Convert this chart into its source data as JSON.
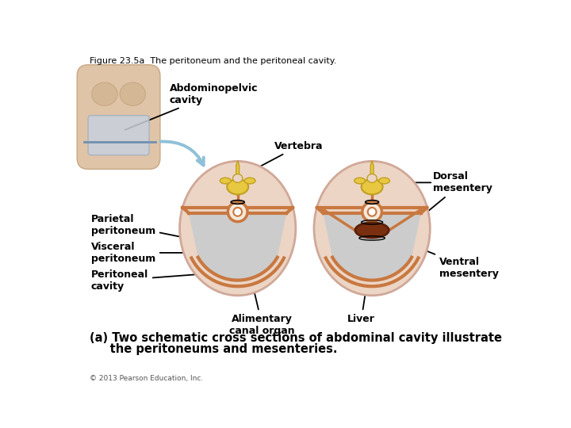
{
  "title": "Figure 23.5a  The peritoneum and the peritoneal cavity.",
  "caption_a": "(a) Two schematic cross sections of abdominal cavity illustrate",
  "caption_b": "     the peritoneums and mesenteries.",
  "copyright": "© 2013 Pearson Education, Inc.",
  "bg_color": "#ffffff",
  "skin_color": "#dfc4a8",
  "skin_edge": "#c8a882",
  "cavity_fill": "#c8d0dc",
  "cavity_edge": "#a0b0c0",
  "outer_oval_color": "#ecd5c5",
  "outer_oval_edge": "#d0a898",
  "inner_gray": "#cccccc",
  "peri_line": "#c87840",
  "vert_fill": "#e8c840",
  "vert_edge": "#c0a020",
  "canal_fill": "#f5e8d8",
  "canal_white": "#ffffff",
  "liver_fill": "#7a3010",
  "liver_edge": "#5a2008",
  "arrow_blue": "#90c0d8",
  "label_fs": 9,
  "title_fs": 8,
  "caption_fs": 10.5,
  "copy_fs": 6.5,
  "labels": {
    "abdominopelvic": "Abdominopelvic\ncavity",
    "vertebra": "Vertebra",
    "dorsal": "Dorsal\nmesentery",
    "parietal": "Parietal\nperitoneum",
    "visceral": "Visceral\nperitoneum",
    "peritoneal": "Peritoneal\ncavity",
    "alimentary": "Alimentary\ncanal organ",
    "liver": "Liver",
    "ventral": "Ventral\nmesentery"
  }
}
